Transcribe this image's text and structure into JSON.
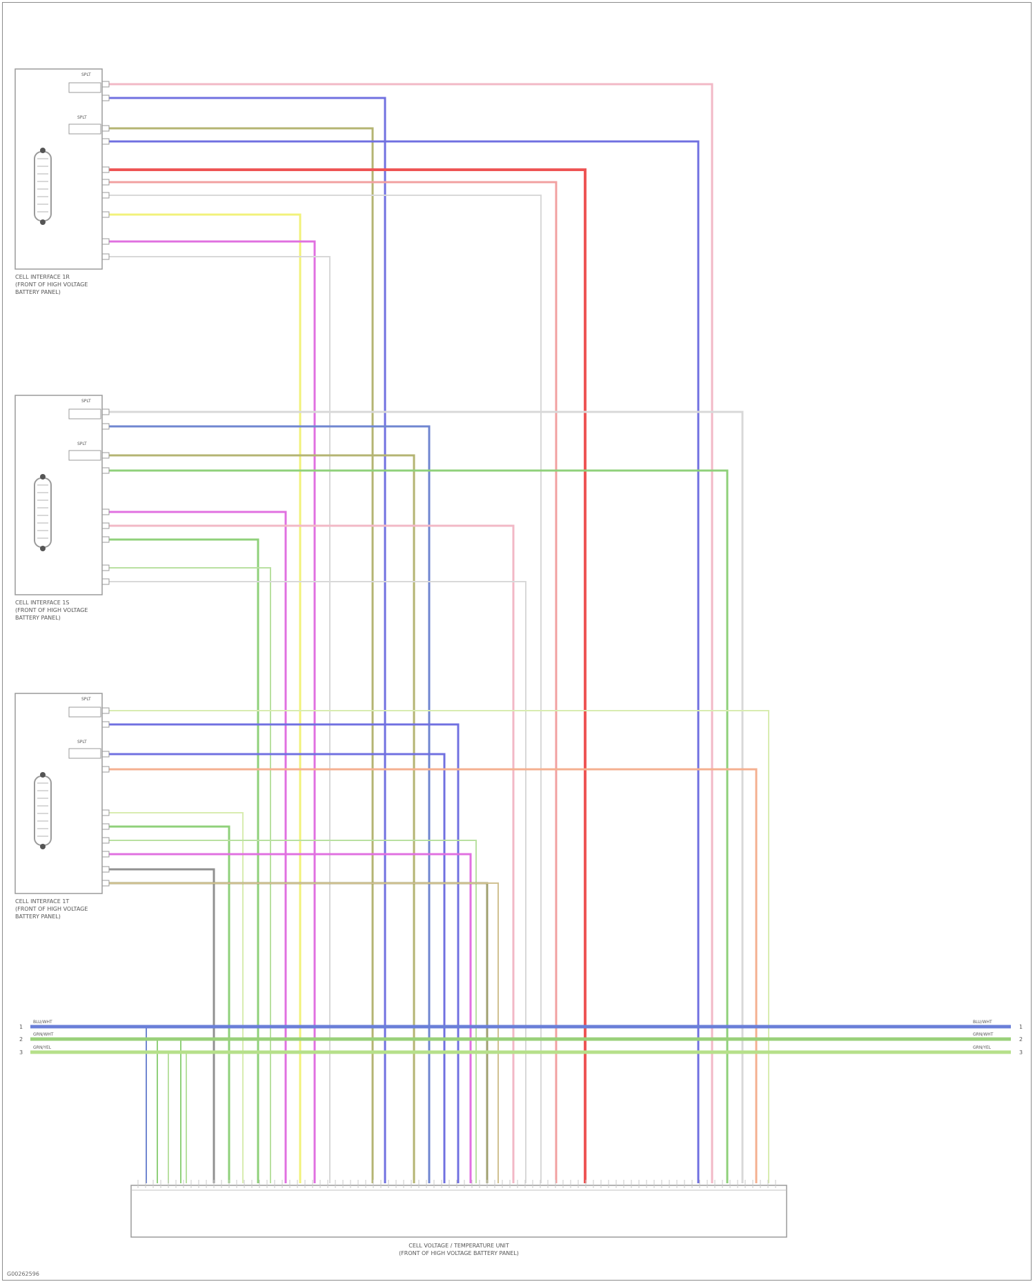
{
  "modules": [
    {
      "id": "module-1",
      "name_lines": [
        "CELL INTERFACE 1R",
        "(FRONT OF HIGH VOLTAGE",
        "BATTERY PANEL)"
      ],
      "bus_labels": [
        "SPLT",
        "SPLT"
      ]
    },
    {
      "id": "module-2",
      "name_lines": [
        "CELL INTERFACE 1S",
        "(FRONT OF HIGH VOLTAGE",
        "BATTERY PANEL)"
      ],
      "bus_labels": [
        "SPLT",
        "SPLT"
      ]
    },
    {
      "id": "module-3",
      "name_lines": [
        "CELL INTERFACE 1T",
        "(FRONT OF HIGH VOLTAGE",
        "BATTERY PANEL)"
      ],
      "bus_labels": [
        "SPLT",
        "SPLT"
      ]
    }
  ],
  "controller": {
    "name_lines": [
      "CELL VOLTAGE / TEMPERATURE UNIT",
      "(FRONT OF HIGH VOLTAGE BATTERY PANEL)"
    ]
  },
  "buses": [
    {
      "label_left": "BLU/WHT",
      "label_right": "BLU/WHT",
      "pin_left": "1",
      "pin_right": "1",
      "color": "#6a7fd8"
    },
    {
      "label_left": "GRN/WHT",
      "label_right": "GRN/WHT",
      "pin_left": "2",
      "pin_right": "2",
      "color": "#9ad07a"
    },
    {
      "label_left": "GRN/YEL",
      "label_right": "GRN/YEL",
      "pin_left": "3",
      "pin_right": "3",
      "color": "#b6e08a"
    }
  ],
  "wire_colors": {
    "pink": "#f2b8c6",
    "blue": "#7070e0",
    "olive": "#b4b472",
    "red": "#ee5555",
    "lightred": "#f2a0a0",
    "lightgray": "#d8d8d8",
    "yellow": "#f2f27a",
    "magenta": "#e070e0",
    "bluegray": "#6f86d0",
    "green": "#8fd07a",
    "lightgreen": "#b8e0a0",
    "orange": "#f4b090",
    "palegreen": "#d8ecb0",
    "darkolive": "#a0a070",
    "gray": "#909090",
    "tan": "#d0c090"
  },
  "footer": {
    "code": "G00262596"
  }
}
